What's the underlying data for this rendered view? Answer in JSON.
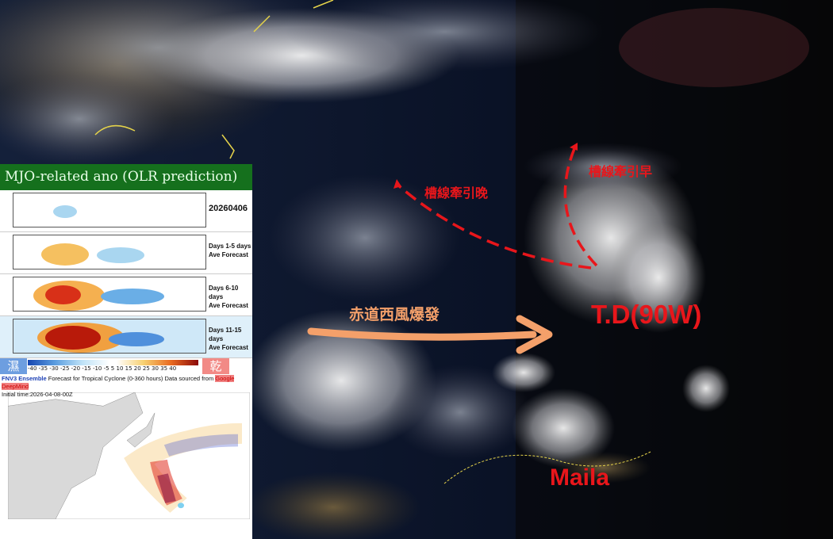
{
  "annotations": {
    "trough_late": "槽線牽引晚",
    "trough_early": "槽線牽引早",
    "westerly_burst": "赤道西風爆發",
    "td_label": "T.D(90W)",
    "storm_label": "Maila"
  },
  "colors": {
    "annotation_red": "#e8161b",
    "westerly_orange": "#f4a06a",
    "header_green": "#15701d"
  },
  "mjo_panel": {
    "title": "MJO-related ano (OLR prediction)",
    "rows": [
      {
        "label": "20260406"
      },
      {
        "label": "Days 1-5 days",
        "sub": "Ave Forecast"
      },
      {
        "label": "Days 6-10 days",
        "sub": "Ave Forecast"
      },
      {
        "label": "Days 11-15 days",
        "sub": "Ave Forecast"
      }
    ],
    "colorbar_ticks": "-40 -35 -30 -25 -20 -15 -10 -5 5 10 15 20 25 30 35 40",
    "wet_label": "濕",
    "dry_label": "乾"
  },
  "track_panel": {
    "title_model": "FNV3 Ensemble",
    "title_mid": " Forecast for Tropical Cyclone (0-360 hours) Data sourced from ",
    "title_source": "Google DeepMind",
    "initial_time": "Initial time:2026-04-08-00Z"
  }
}
